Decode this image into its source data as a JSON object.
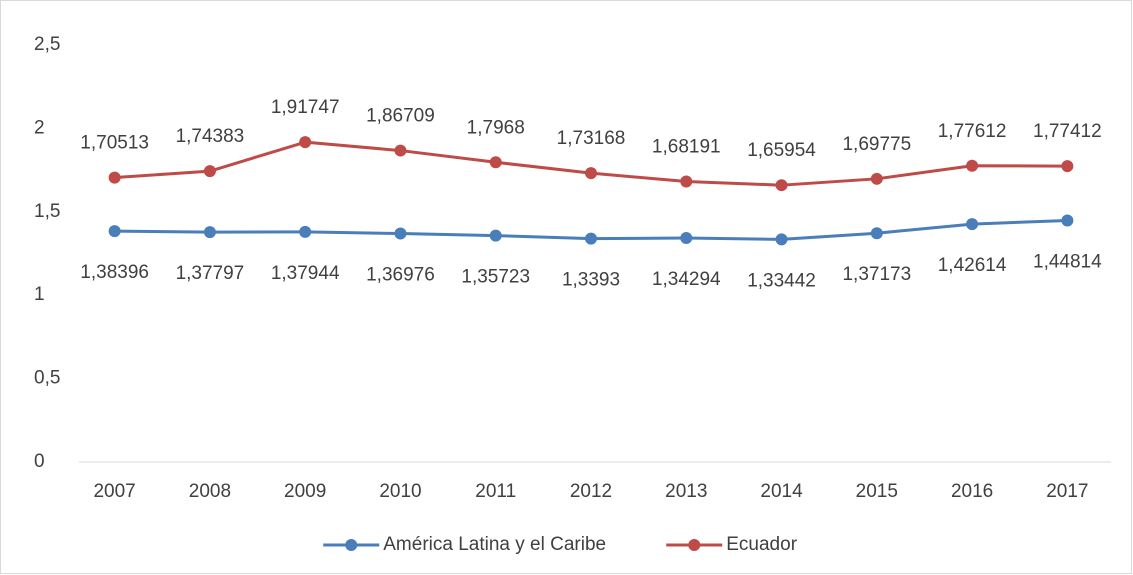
{
  "chart_data": {
    "type": "line",
    "categories": [
      "2007",
      "2008",
      "2009",
      "2010",
      "2011",
      "2012",
      "2013",
      "2014",
      "2015",
      "2016",
      "2017"
    ],
    "series": [
      {
        "name": "América Latina y el Caribe",
        "color": "#4a7ebb",
        "values": [
          1.38396,
          1.37797,
          1.37944,
          1.36976,
          1.35723,
          1.3393,
          1.34294,
          1.33442,
          1.37173,
          1.42614,
          1.44814
        ],
        "value_labels": [
          "1,38396",
          "1,37797",
          "1,37944",
          "1,36976",
          "1,35723",
          "1,3393",
          "1,34294",
          "1,33442",
          "1,37173",
          "1,42614",
          "1,44814"
        ]
      },
      {
        "name": "Ecuador",
        "color": "#be4b48",
        "values": [
          1.70513,
          1.74383,
          1.91747,
          1.86709,
          1.7968,
          1.73168,
          1.68191,
          1.65954,
          1.69775,
          1.77612,
          1.77412
        ],
        "value_labels": [
          "1,70513",
          "1,74383",
          "1,91747",
          "1,86709",
          "1,7968",
          "1,73168",
          "1,68191",
          "1,65954",
          "1,69775",
          "1,77612",
          "1,77412"
        ]
      }
    ],
    "ylim": [
      0,
      2.5
    ],
    "yticks": [
      0,
      {
        "value": 0.5,
        "label": "0,5"
      },
      1,
      {
        "value": 1.5,
        "label": "1,5"
      },
      2,
      {
        "value": 2.5,
        "label": "2,5"
      }
    ],
    "grid": false,
    "legend": "bottom"
  }
}
